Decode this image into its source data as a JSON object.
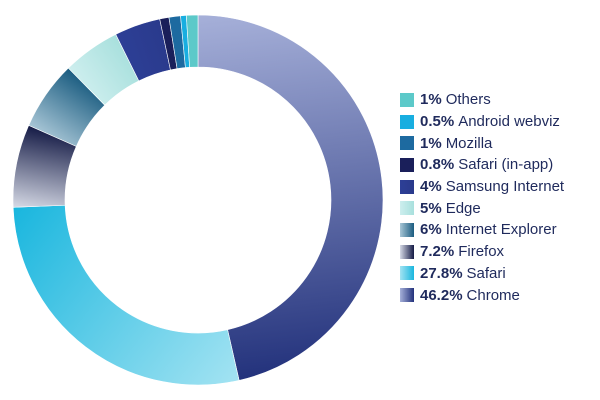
{
  "chart_data": {
    "type": "pie",
    "variant": "donut",
    "title": "",
    "legend_position": "right",
    "series": [
      {
        "name": "Chrome",
        "value": 46.2,
        "pct_label": "46.2%",
        "colors": [
          "#a6b0d9",
          "#23327c"
        ]
      },
      {
        "name": "Safari",
        "value": 27.8,
        "pct_label": "27.8%",
        "colors": [
          "#a3e3f2",
          "#19b6de"
        ]
      },
      {
        "name": "Firefox",
        "value": 7.2,
        "pct_label": "7.2%",
        "colors": [
          "#d6dae6",
          "#141a45"
        ]
      },
      {
        "name": "Internet Explorer",
        "value": 6,
        "pct_label": "6%",
        "colors": [
          "#a8c6d6",
          "#1a5c80"
        ]
      },
      {
        "name": "Edge",
        "value": 5,
        "pct_label": "5%",
        "colors": [
          "#cdeeee",
          "#a8e0dd"
        ]
      },
      {
        "name": "Samsung Internet",
        "value": 4,
        "pct_label": "4%",
        "colors": [
          "#2d3f96",
          "#2a3a8c"
        ]
      },
      {
        "name": "Safari (in-app)",
        "value": 0.8,
        "pct_label": "0.8%",
        "colors": [
          "#1a1f5a",
          "#1a1f5a"
        ]
      },
      {
        "name": "Mozilla",
        "value": 1,
        "pct_label": "1%",
        "colors": [
          "#1d6aa0",
          "#1d6aa0"
        ]
      },
      {
        "name": "Android webviz",
        "value": 0.5,
        "pct_label": "0.5%",
        "colors": [
          "#18aee0",
          "#18aee0"
        ]
      },
      {
        "name": "Others",
        "value": 1,
        "pct_label": "1%",
        "colors": [
          "#5cc9c9",
          "#5cc9c9"
        ]
      }
    ],
    "legend_order": [
      "Others",
      "Android webviz",
      "Mozilla",
      "Safari (in-app)",
      "Samsung Internet",
      "Edge",
      "Internet Explorer",
      "Firefox",
      "Safari",
      "Chrome"
    ]
  }
}
